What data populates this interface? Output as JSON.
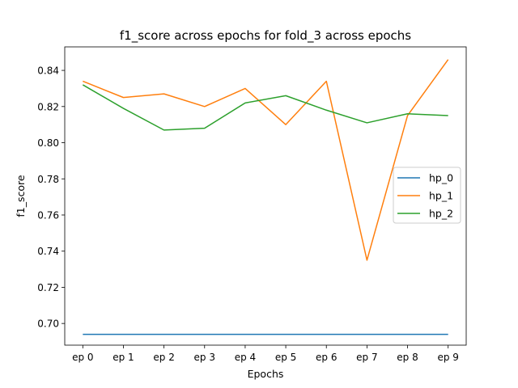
{
  "chart_data": {
    "type": "line",
    "title": "f1_score across epochs for fold_3 across epochs",
    "xlabel": "Epochs",
    "ylabel": "f1_score",
    "categories": [
      "ep 0",
      "ep 1",
      "ep 2",
      "ep 3",
      "ep 4",
      "ep 5",
      "ep 6",
      "ep 7",
      "ep 8",
      "ep 9"
    ],
    "ylim": [
      0.688,
      0.853
    ],
    "yticks": [
      0.7,
      0.72,
      0.74,
      0.76,
      0.78,
      0.8,
      0.82,
      0.84
    ],
    "ytick_labels": [
      "0.70",
      "0.72",
      "0.74",
      "0.76",
      "0.78",
      "0.80",
      "0.82",
      "0.84"
    ],
    "grid": false,
    "legend_position": "center-right",
    "series": [
      {
        "name": "hp_0",
        "color": "#1f77b4",
        "values": [
          0.694,
          0.694,
          0.694,
          0.694,
          0.694,
          0.694,
          0.694,
          0.694,
          0.694,
          0.694
        ]
      },
      {
        "name": "hp_1",
        "color": "#ff7f0e",
        "values": [
          0.834,
          0.825,
          0.827,
          0.82,
          0.83,
          0.81,
          0.834,
          0.735,
          0.815,
          0.846
        ]
      },
      {
        "name": "hp_2",
        "color": "#2ca02c",
        "values": [
          0.832,
          0.819,
          0.807,
          0.808,
          0.822,
          0.826,
          0.818,
          0.811,
          0.816,
          0.815
        ]
      }
    ]
  }
}
